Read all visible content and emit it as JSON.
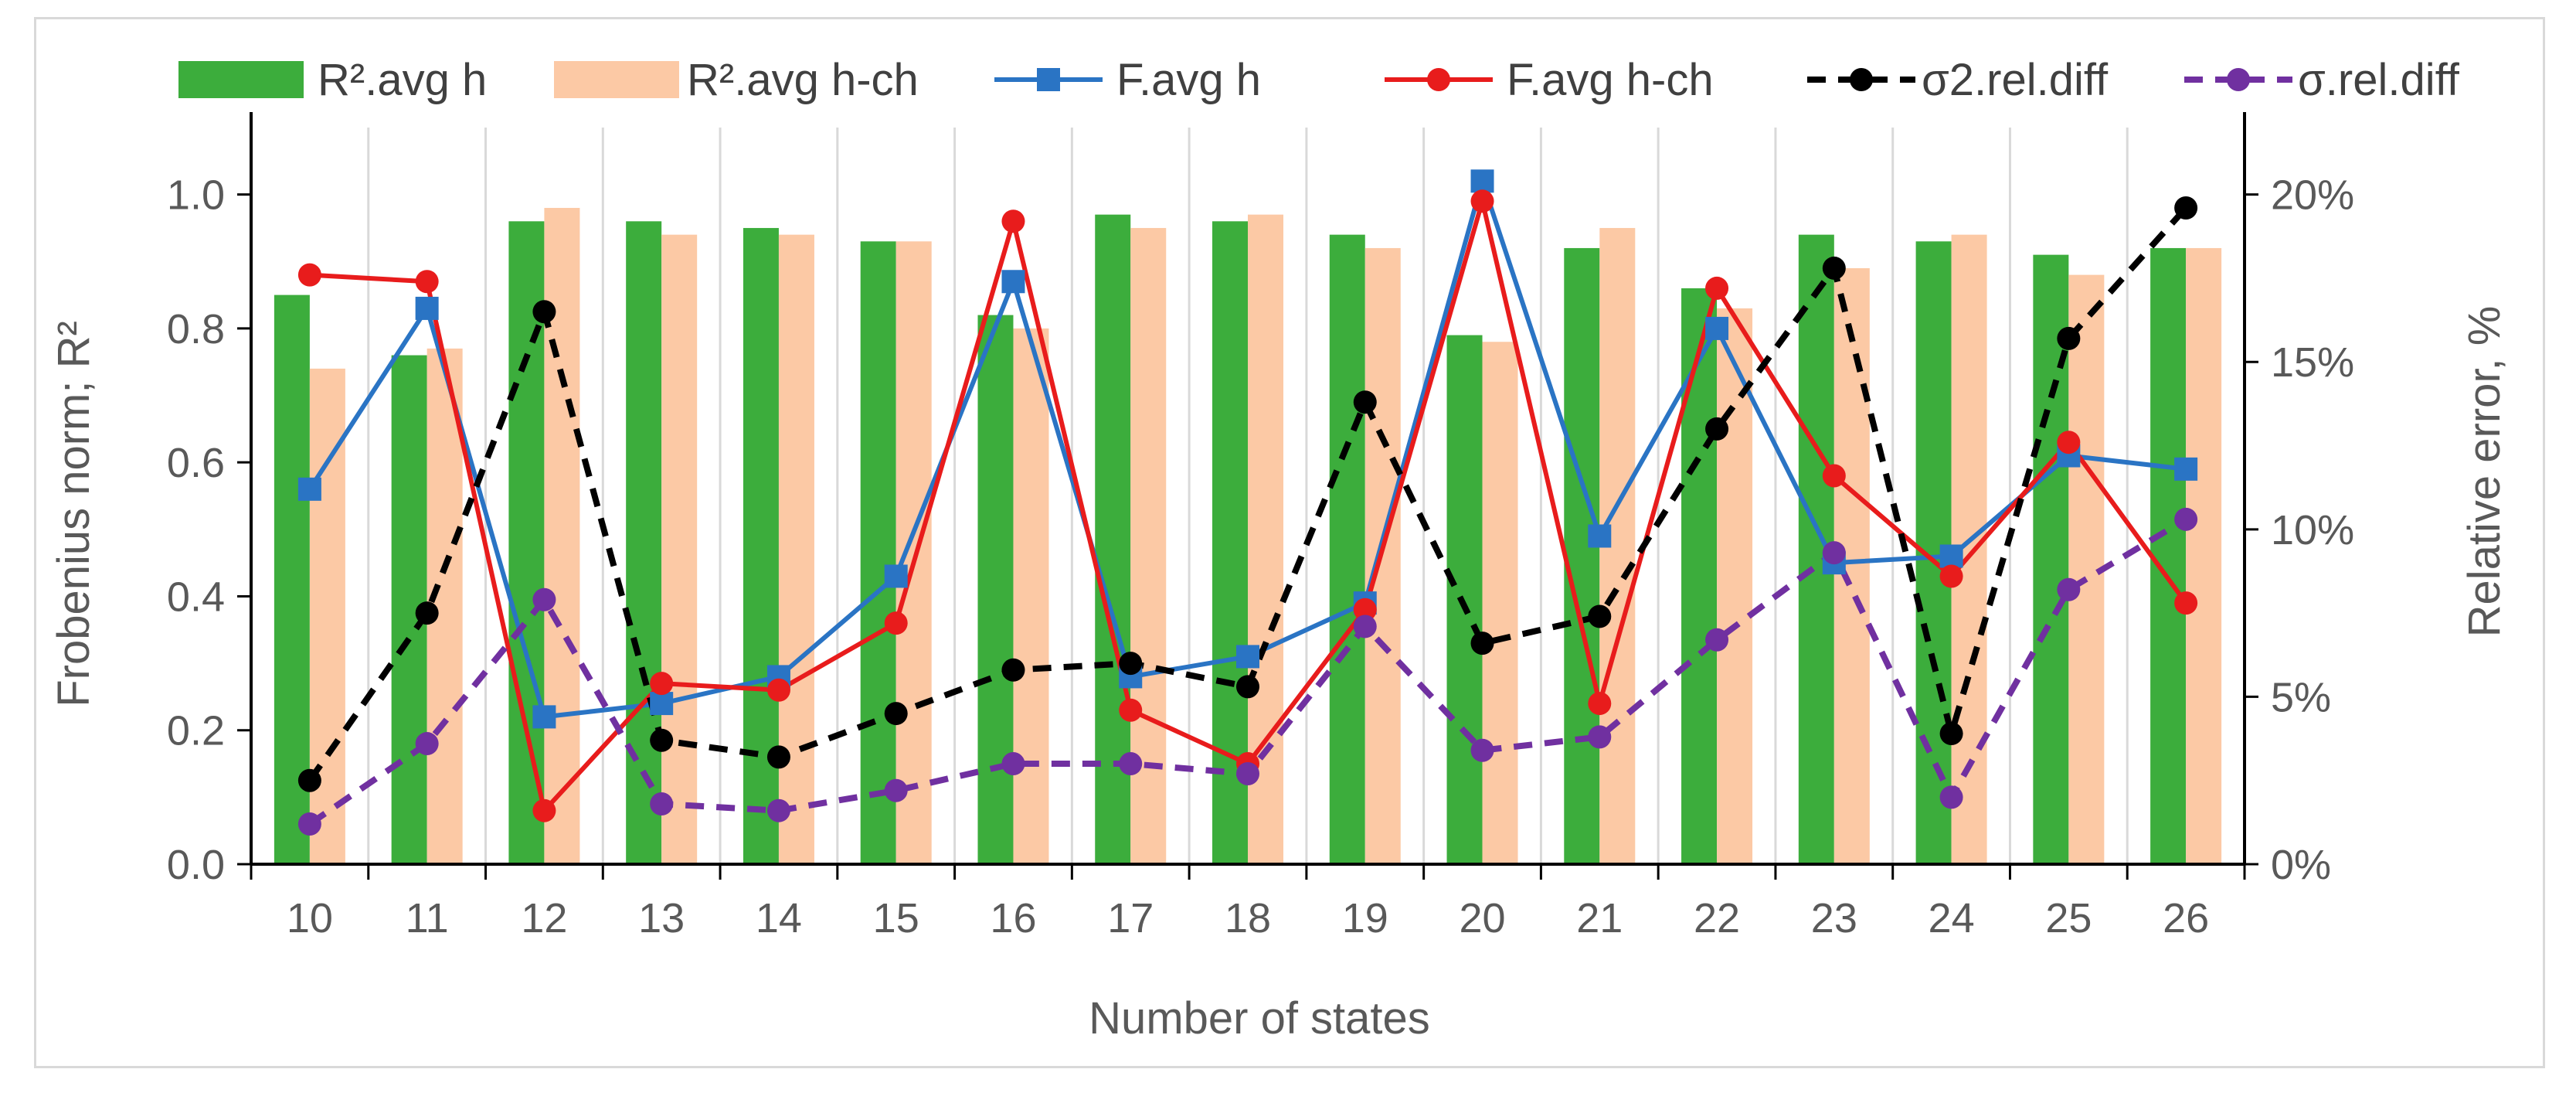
{
  "chart_data": {
    "type": "bar",
    "categories": [
      "10",
      "11",
      "12",
      "13",
      "14",
      "15",
      "16",
      "17",
      "18",
      "19",
      "20",
      "21",
      "22",
      "23",
      "24",
      "25",
      "26"
    ],
    "xlabel": "Number of states",
    "ylabel": "Frobenius norm; R²",
    "ylabel_right": "Relative error, %",
    "ylim": [
      0,
      1.1
    ],
    "ylim_right": [
      0,
      22
    ],
    "y_ticks": [
      "0.0",
      "0.2",
      "0.4",
      "0.6",
      "0.8",
      "1.0"
    ],
    "y_right_ticks": [
      "0%",
      "5%",
      "10%",
      "15%",
      "20%"
    ],
    "legend_position": "top",
    "series": [
      {
        "name": "R².avg h",
        "kind": "bar",
        "axis": "left",
        "color": "#3cad3c",
        "values": [
          0.85,
          0.76,
          0.96,
          0.96,
          0.95,
          0.93,
          0.82,
          0.97,
          0.96,
          0.94,
          0.79,
          0.92,
          0.86,
          0.94,
          0.93,
          0.91,
          0.92
        ]
      },
      {
        "name": "R².avg h-ch",
        "kind": "bar",
        "axis": "left",
        "color": "#fcc9a5",
        "values": [
          0.74,
          0.77,
          0.98,
          0.94,
          0.94,
          0.93,
          0.8,
          0.95,
          0.97,
          0.92,
          0.78,
          0.95,
          0.83,
          0.89,
          0.94,
          0.88,
          0.92
        ]
      },
      {
        "name": "F.avg h",
        "kind": "line",
        "axis": "left",
        "color": "#2a74c4",
        "marker": "square",
        "dash": "solid",
        "values": [
          0.56,
          0.83,
          0.22,
          0.24,
          0.28,
          0.43,
          0.87,
          0.28,
          0.31,
          0.39,
          1.02,
          0.49,
          0.8,
          0.45,
          0.46,
          0.61,
          0.59
        ]
      },
      {
        "name": "F.avg h-ch",
        "kind": "line",
        "axis": "left",
        "color": "#e81c1c",
        "marker": "circle",
        "dash": "solid",
        "values": [
          0.88,
          0.87,
          0.08,
          0.27,
          0.26,
          0.36,
          0.96,
          0.23,
          0.15,
          0.38,
          0.99,
          0.24,
          0.86,
          0.58,
          0.43,
          0.63,
          0.39
        ]
      },
      {
        "name": "σ2.rel.diff",
        "kind": "line",
        "axis": "right",
        "color": "#000000",
        "marker": "circle",
        "dash": "dashed",
        "values": [
          2.5,
          7.5,
          16.5,
          3.7,
          3.2,
          4.5,
          5.8,
          6.0,
          5.3,
          13.8,
          6.6,
          7.4,
          13.0,
          17.8,
          3.9,
          15.7,
          19.6
        ]
      },
      {
        "name": "σ.rel.diff",
        "kind": "line",
        "axis": "right",
        "color": "#7030a0",
        "marker": "circle",
        "dash": "dashed",
        "values": [
          1.2,
          3.6,
          7.9,
          1.8,
          1.6,
          2.2,
          3.0,
          3.0,
          2.7,
          7.1,
          3.4,
          3.8,
          6.7,
          9.3,
          2.0,
          8.2,
          10.3
        ]
      }
    ]
  }
}
